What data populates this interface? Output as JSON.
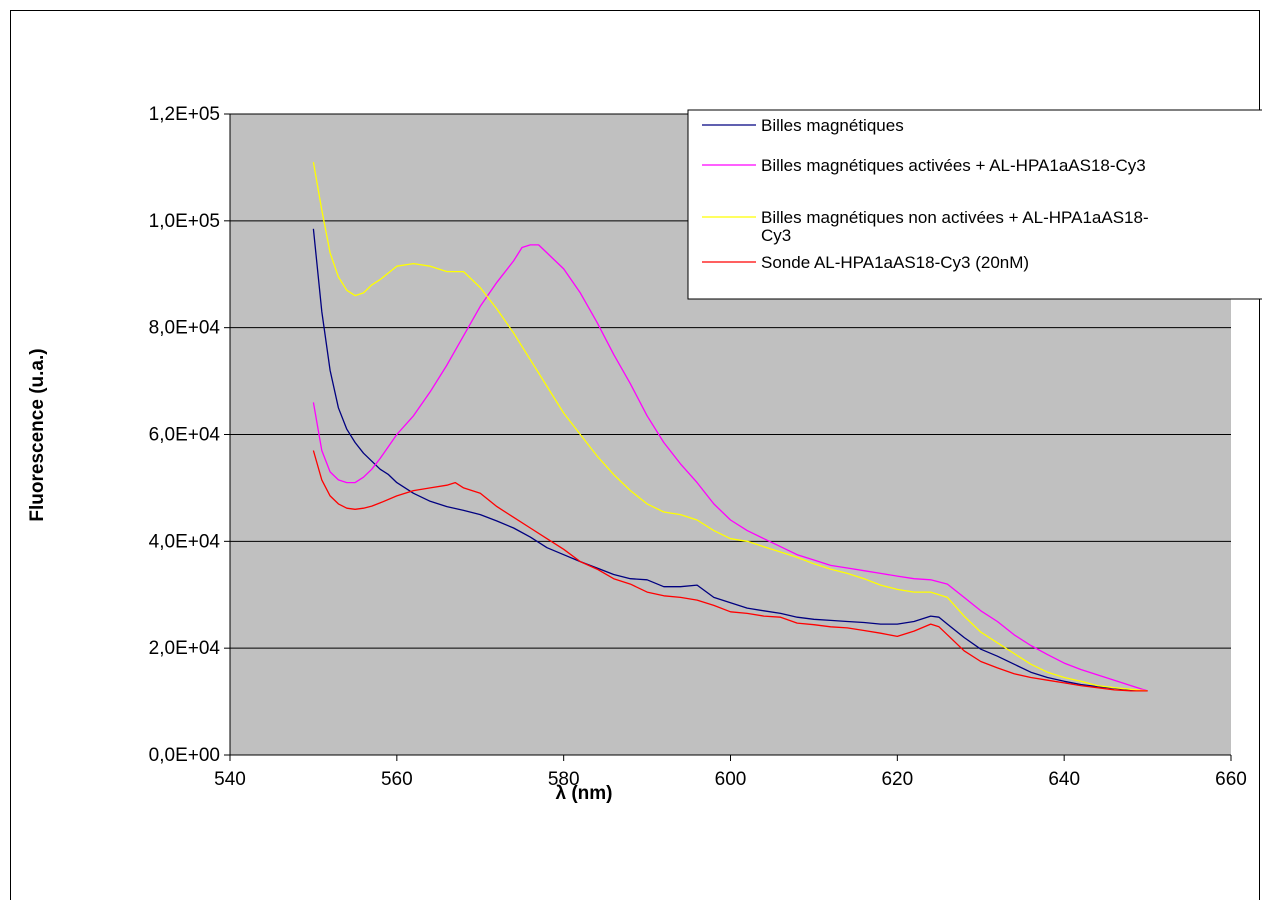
{
  "chart_data": {
    "type": "line",
    "title": "",
    "xlabel": "λ (nm)",
    "ylabel": "Fluorescence (u.a.)",
    "xlim": [
      540,
      660
    ],
    "ylim": [
      0,
      120000
    ],
    "x_ticks": [
      540,
      560,
      580,
      600,
      620,
      640,
      660
    ],
    "x_tick_labels": [
      "540",
      "560",
      "580",
      "600",
      "620",
      "640",
      "660"
    ],
    "y_ticks": [
      0,
      20000,
      40000,
      60000,
      80000,
      100000,
      120000
    ],
    "y_tick_labels": [
      "0,0E+00",
      "2,0E+04",
      "4,0E+04",
      "6,0E+04",
      "8,0E+04",
      "1,0E+05",
      "1,2E+05"
    ],
    "grid": "horizontal",
    "plot_background": "#c0c0c0",
    "legend_position": "top-right",
    "series": [
      {
        "name": "Billes magnétiques",
        "color": "#000080",
        "points": [
          [
            550,
            98500
          ],
          [
            551,
            83000
          ],
          [
            552,
            72000
          ],
          [
            553,
            65000
          ],
          [
            554,
            61000
          ],
          [
            555,
            58500
          ],
          [
            556,
            56500
          ],
          [
            557,
            55000
          ],
          [
            558,
            53500
          ],
          [
            559,
            52500
          ],
          [
            560,
            51000
          ],
          [
            562,
            49000
          ],
          [
            564,
            47500
          ],
          [
            566,
            46500
          ],
          [
            568,
            45800
          ],
          [
            570,
            45000
          ],
          [
            572,
            43800
          ],
          [
            574,
            42500
          ],
          [
            576,
            40800
          ],
          [
            578,
            38800
          ],
          [
            580,
            37500
          ],
          [
            582,
            36200
          ],
          [
            584,
            35000
          ],
          [
            586,
            33800
          ],
          [
            588,
            33000
          ],
          [
            590,
            32800
          ],
          [
            592,
            31500
          ],
          [
            594,
            31500
          ],
          [
            596,
            31800
          ],
          [
            598,
            29500
          ],
          [
            600,
            28500
          ],
          [
            602,
            27500
          ],
          [
            604,
            27000
          ],
          [
            606,
            26500
          ],
          [
            608,
            25800
          ],
          [
            610,
            25400
          ],
          [
            612,
            25200
          ],
          [
            614,
            25000
          ],
          [
            616,
            24800
          ],
          [
            618,
            24500
          ],
          [
            620,
            24500
          ],
          [
            622,
            25000
          ],
          [
            624,
            26000
          ],
          [
            625,
            25800
          ],
          [
            626,
            24500
          ],
          [
            628,
            22000
          ],
          [
            630,
            19800
          ],
          [
            632,
            18500
          ],
          [
            634,
            17000
          ],
          [
            636,
            15500
          ],
          [
            638,
            14500
          ],
          [
            640,
            13800
          ],
          [
            642,
            13200
          ],
          [
            644,
            12800
          ],
          [
            646,
            12500
          ],
          [
            648,
            12200
          ],
          [
            650,
            12000
          ]
        ]
      },
      {
        "name": "Billes magnétiques activées + AL-HPA1aAS18-Cy3",
        "color": "#ff00ff",
        "points": [
          [
            550,
            66000
          ],
          [
            551,
            57000
          ],
          [
            552,
            53000
          ],
          [
            553,
            51500
          ],
          [
            554,
            51000
          ],
          [
            555,
            51000
          ],
          [
            556,
            52000
          ],
          [
            557,
            53500
          ],
          [
            558,
            55500
          ],
          [
            560,
            60000
          ],
          [
            562,
            63500
          ],
          [
            564,
            68000
          ],
          [
            566,
            73000
          ],
          [
            568,
            78500
          ],
          [
            570,
            84000
          ],
          [
            572,
            88500
          ],
          [
            574,
            92500
          ],
          [
            575,
            95000
          ],
          [
            576,
            95500
          ],
          [
            577,
            95500
          ],
          [
            578,
            94000
          ],
          [
            580,
            91000
          ],
          [
            582,
            86500
          ],
          [
            584,
            81000
          ],
          [
            586,
            75000
          ],
          [
            588,
            69500
          ],
          [
            590,
            63500
          ],
          [
            592,
            58500
          ],
          [
            594,
            54500
          ],
          [
            596,
            51000
          ],
          [
            598,
            47000
          ],
          [
            600,
            44000
          ],
          [
            602,
            42000
          ],
          [
            604,
            40500
          ],
          [
            606,
            39000
          ],
          [
            608,
            37500
          ],
          [
            610,
            36500
          ],
          [
            612,
            35500
          ],
          [
            614,
            35000
          ],
          [
            616,
            34500
          ],
          [
            618,
            34000
          ],
          [
            620,
            33500
          ],
          [
            622,
            33000
          ],
          [
            624,
            32800
          ],
          [
            626,
            32000
          ],
          [
            628,
            29500
          ],
          [
            630,
            27000
          ],
          [
            632,
            25000
          ],
          [
            634,
            22500
          ],
          [
            636,
            20500
          ],
          [
            638,
            18800
          ],
          [
            640,
            17200
          ],
          [
            642,
            16000
          ],
          [
            644,
            15000
          ],
          [
            646,
            14000
          ],
          [
            648,
            13000
          ],
          [
            650,
            12000
          ]
        ]
      },
      {
        "name": "Billes magnétiques non activées + AL-HPA1aAS18-Cy3",
        "color": "#ffff00",
        "points": [
          [
            550,
            111000
          ],
          [
            551,
            102000
          ],
          [
            552,
            94000
          ],
          [
            553,
            89500
          ],
          [
            554,
            87000
          ],
          [
            555,
            86000
          ],
          [
            556,
            86500
          ],
          [
            557,
            88000
          ],
          [
            558,
            89000
          ],
          [
            560,
            91500
          ],
          [
            562,
            92000
          ],
          [
            564,
            91500
          ],
          [
            566,
            90500
          ],
          [
            568,
            90500
          ],
          [
            570,
            87500
          ],
          [
            572,
            83500
          ],
          [
            574,
            79000
          ],
          [
            576,
            74000
          ],
          [
            578,
            69000
          ],
          [
            580,
            64000
          ],
          [
            582,
            60000
          ],
          [
            584,
            56000
          ],
          [
            586,
            52500
          ],
          [
            588,
            49500
          ],
          [
            590,
            47000
          ],
          [
            592,
            45500
          ],
          [
            594,
            45000
          ],
          [
            596,
            44000
          ],
          [
            598,
            42000
          ],
          [
            600,
            40500
          ],
          [
            602,
            40000
          ],
          [
            604,
            39000
          ],
          [
            606,
            38000
          ],
          [
            608,
            37000
          ],
          [
            610,
            35800
          ],
          [
            612,
            34800
          ],
          [
            614,
            34000
          ],
          [
            616,
            33000
          ],
          [
            618,
            31800
          ],
          [
            620,
            31000
          ],
          [
            622,
            30500
          ],
          [
            624,
            30500
          ],
          [
            626,
            29500
          ],
          [
            628,
            26000
          ],
          [
            630,
            23000
          ],
          [
            632,
            21000
          ],
          [
            634,
            19000
          ],
          [
            636,
            17000
          ],
          [
            638,
            15500
          ],
          [
            640,
            14500
          ],
          [
            642,
            13800
          ],
          [
            644,
            13000
          ],
          [
            646,
            12600
          ],
          [
            648,
            12300
          ],
          [
            650,
            12000
          ]
        ]
      },
      {
        "name": "Sonde AL-HPA1aAS18-Cy3 (20nM)",
        "color": "#ff0000",
        "points": [
          [
            550,
            57000
          ],
          [
            551,
            51500
          ],
          [
            552,
            48500
          ],
          [
            553,
            47000
          ],
          [
            554,
            46200
          ],
          [
            555,
            46000
          ],
          [
            556,
            46200
          ],
          [
            557,
            46600
          ],
          [
            558,
            47200
          ],
          [
            560,
            48500
          ],
          [
            562,
            49500
          ],
          [
            564,
            50000
          ],
          [
            566,
            50500
          ],
          [
            567,
            51000
          ],
          [
            568,
            50000
          ],
          [
            570,
            49000
          ],
          [
            572,
            46500
          ],
          [
            574,
            44500
          ],
          [
            576,
            42500
          ],
          [
            578,
            40500
          ],
          [
            580,
            38500
          ],
          [
            582,
            36200
          ],
          [
            584,
            34800
          ],
          [
            586,
            33000
          ],
          [
            588,
            32000
          ],
          [
            590,
            30500
          ],
          [
            592,
            29800
          ],
          [
            594,
            29500
          ],
          [
            596,
            29000
          ],
          [
            598,
            28000
          ],
          [
            600,
            26800
          ],
          [
            602,
            26500
          ],
          [
            604,
            26000
          ],
          [
            606,
            25800
          ],
          [
            608,
            24700
          ],
          [
            610,
            24400
          ],
          [
            612,
            24000
          ],
          [
            614,
            23800
          ],
          [
            616,
            23300
          ],
          [
            618,
            22800
          ],
          [
            620,
            22200
          ],
          [
            622,
            23200
          ],
          [
            624,
            24500
          ],
          [
            625,
            24000
          ],
          [
            626,
            22500
          ],
          [
            628,
            19500
          ],
          [
            630,
            17500
          ],
          [
            632,
            16300
          ],
          [
            634,
            15200
          ],
          [
            636,
            14500
          ],
          [
            638,
            14000
          ],
          [
            640,
            13500
          ],
          [
            642,
            13000
          ],
          [
            644,
            12600
          ],
          [
            646,
            12200
          ],
          [
            648,
            12000
          ],
          [
            650,
            12000
          ]
        ]
      }
    ]
  }
}
